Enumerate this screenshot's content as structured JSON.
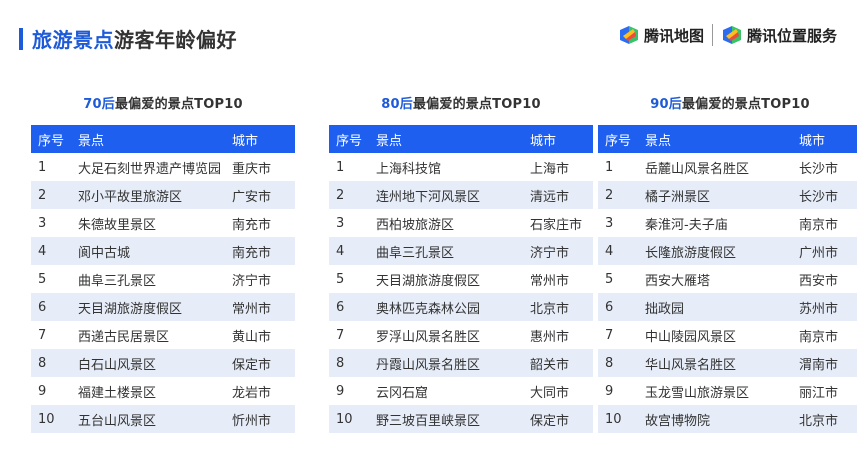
{
  "header": {
    "title_highlight": "旅游景点",
    "title_rest": "游客年龄偏好",
    "logo1_text": "腾讯地图",
    "logo2_text": "腾讯位置服务"
  },
  "columns": {
    "no": "序号",
    "spot": "景点",
    "city": "城市"
  },
  "panels": [
    {
      "title_highlight": "70后",
      "title_rest": "最偏爱的景点TOP10",
      "rows": [
        {
          "no": "1",
          "spot": "大足石刻世界遗产博览园",
          "city": "重庆市"
        },
        {
          "no": "2",
          "spot": "邓小平故里旅游区",
          "city": "广安市"
        },
        {
          "no": "3",
          "spot": "朱德故里景区",
          "city": "南充市"
        },
        {
          "no": "4",
          "spot": "阆中古城",
          "city": "南充市"
        },
        {
          "no": "5",
          "spot": "曲阜三孔景区",
          "city": "济宁市"
        },
        {
          "no": "6",
          "spot": "天目湖旅游度假区",
          "city": "常州市"
        },
        {
          "no": "7",
          "spot": "西递古民居景区",
          "city": "黄山市"
        },
        {
          "no": "8",
          "spot": "白石山风景区",
          "city": "保定市"
        },
        {
          "no": "9",
          "spot": "福建土楼景区",
          "city": "龙岩市"
        },
        {
          "no": "10",
          "spot": "五台山风景区",
          "city": "忻州市"
        }
      ]
    },
    {
      "title_highlight": "80后",
      "title_rest": "最偏爱的景点TOP10",
      "rows": [
        {
          "no": "1",
          "spot": "上海科技馆",
          "city": "上海市"
        },
        {
          "no": "2",
          "spot": "连州地下河风景区",
          "city": "清远市"
        },
        {
          "no": "3",
          "spot": "西柏坡旅游区",
          "city": "石家庄市"
        },
        {
          "no": "4",
          "spot": "曲阜三孔景区",
          "city": "济宁市"
        },
        {
          "no": "5",
          "spot": "天目湖旅游度假区",
          "city": "常州市"
        },
        {
          "no": "6",
          "spot": "奥林匹克森林公园",
          "city": "北京市"
        },
        {
          "no": "7",
          "spot": "罗浮山风景名胜区",
          "city": "惠州市"
        },
        {
          "no": "8",
          "spot": "丹霞山风景名胜区",
          "city": "韶关市"
        },
        {
          "no": "9",
          "spot": "云冈石窟",
          "city": "大同市"
        },
        {
          "no": "10",
          "spot": "野三坡百里峡景区",
          "city": "保定市"
        }
      ]
    },
    {
      "title_highlight": "90后",
      "title_rest": "最偏爱的景点TOP10",
      "rows": [
        {
          "no": "1",
          "spot": "岳麓山风景名胜区",
          "city": "长沙市"
        },
        {
          "no": "2",
          "spot": "橘子洲景区",
          "city": "长沙市"
        },
        {
          "no": "3",
          "spot": "秦淮河-夫子庙",
          "city": "南京市"
        },
        {
          "no": "4",
          "spot": "长隆旅游度假区",
          "city": "广州市"
        },
        {
          "no": "5",
          "spot": "西安大雁塔",
          "city": "西安市"
        },
        {
          "no": "6",
          "spot": "拙政园",
          "city": "苏州市"
        },
        {
          "no": "7",
          "spot": "中山陵园风景区",
          "city": "南京市"
        },
        {
          "no": "8",
          "spot": "华山风景名胜区",
          "city": "渭南市"
        },
        {
          "no": "9",
          "spot": "玉龙雪山旅游景区",
          "city": "丽江市"
        },
        {
          "no": "10",
          "spot": "故宫博物院",
          "city": "北京市"
        }
      ]
    }
  ]
}
